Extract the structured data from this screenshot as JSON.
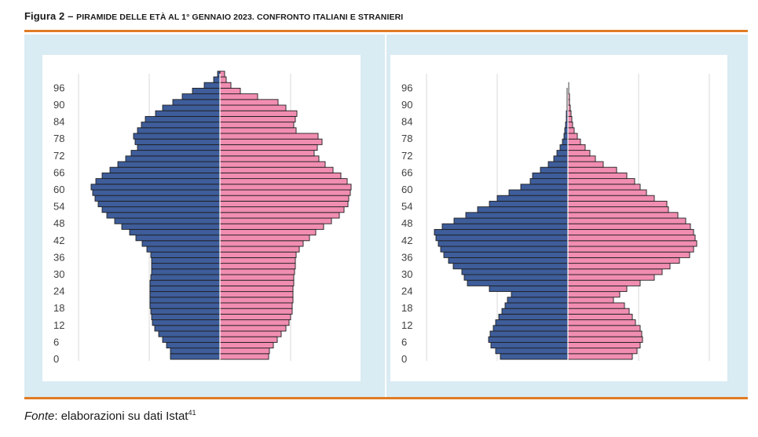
{
  "figure": {
    "label": "Figura 2",
    "dash": " – ",
    "title": "Piramide delle età al 1° gennaio 2023. Confronto italiani e stranieri"
  },
  "source": {
    "label": "Fonte",
    "text": ": elaborazioni su dati Istat",
    "note_ref": "41"
  },
  "colors": {
    "male": "#3e5d9a",
    "female": "#f18db1",
    "frame": "#d9ebf3",
    "rule": "#e07b24"
  },
  "chart_data": [
    {
      "type": "bar",
      "orientation": "horizontal",
      "population": "italiani",
      "y_ticks": [
        "0",
        "6",
        "12",
        "18",
        "24",
        "30",
        "36",
        "42",
        "48",
        "54",
        "60",
        "66",
        "72",
        "78",
        "84",
        "90",
        "96"
      ],
      "age_bins": [
        "0",
        "2",
        "4",
        "6",
        "8",
        "10",
        "12",
        "14",
        "16",
        "18",
        "20",
        "22",
        "24",
        "26",
        "28",
        "30",
        "32",
        "34",
        "36",
        "38",
        "40",
        "42",
        "44",
        "46",
        "48",
        "50",
        "52",
        "54",
        "56",
        "58",
        "60",
        "62",
        "64",
        "66",
        "68",
        "70",
        "72",
        "74",
        "76",
        "78",
        "80",
        "82",
        "84",
        "86",
        "88",
        "90",
        "92",
        "94",
        "96",
        "98",
        "100"
      ],
      "series": [
        {
          "values": [
            63,
            63,
            68,
            73,
            78,
            83,
            86,
            87,
            88,
            89,
            89,
            89,
            89,
            89,
            88,
            87,
            87,
            87,
            88,
            93,
            99,
            107,
            115,
            125,
            134,
            144,
            150,
            155,
            159,
            162,
            164,
            158,
            150,
            140,
            130,
            120,
            113,
            105,
            108,
            110,
            105,
            100,
            95,
            82,
            73,
            60,
            48,
            35,
            20,
            8,
            3
          ]
        },
        {
          "values": [
            62,
            63,
            68,
            73,
            78,
            84,
            88,
            90,
            92,
            92,
            93,
            93,
            93,
            94,
            94,
            95,
            96,
            96,
            97,
            101,
            106,
            114,
            122,
            132,
            142,
            152,
            158,
            163,
            164,
            166,
            167,
            162,
            154,
            144,
            134,
            126,
            120,
            124,
            130,
            125,
            97,
            94,
            96,
            98,
            84,
            74,
            48,
            26,
            14,
            8,
            6
          ]
        }
      ],
      "xlim": [
        -180,
        180
      ]
    },
    {
      "type": "bar",
      "orientation": "horizontal",
      "population": "stranieri",
      "y_ticks": [
        "0",
        "6",
        "12",
        "18",
        "24",
        "30",
        "36",
        "42",
        "48",
        "54",
        "60",
        "66",
        "72",
        "78",
        "84",
        "90",
        "96"
      ],
      "age_bins": [
        "0",
        "2",
        "4",
        "6",
        "8",
        "10",
        "12",
        "14",
        "16",
        "18",
        "20",
        "22",
        "24",
        "26",
        "28",
        "30",
        "32",
        "34",
        "36",
        "38",
        "40",
        "42",
        "44",
        "46",
        "48",
        "50",
        "52",
        "54",
        "56",
        "58",
        "60",
        "62",
        "64",
        "66",
        "68",
        "70",
        "72",
        "74",
        "76",
        "78",
        "80",
        "82",
        "84",
        "86",
        "88",
        "90",
        "92",
        "94",
        "96"
      ],
      "series": [
        {
          "values": [
            86,
            92,
            98,
            101,
            99,
            95,
            92,
            88,
            84,
            80,
            77,
            72,
            100,
            128,
            132,
            135,
            146,
            152,
            158,
            162,
            165,
            168,
            170,
            160,
            145,
            130,
            115,
            100,
            90,
            75,
            60,
            48,
            45,
            35,
            25,
            18,
            14,
            10,
            7,
            5,
            4,
            3,
            2,
            2,
            1,
            1,
            1,
            1,
            0
          ]
        },
        {
          "values": [
            82,
            88,
            92,
            95,
            94,
            92,
            86,
            82,
            78,
            72,
            58,
            66,
            75,
            92,
            110,
            120,
            130,
            142,
            155,
            160,
            164,
            162,
            160,
            156,
            150,
            140,
            128,
            126,
            110,
            100,
            92,
            85,
            75,
            62,
            45,
            35,
            28,
            22,
            16,
            12,
            8,
            6,
            5,
            4,
            3,
            2,
            2,
            1,
            1
          ]
        }
      ],
      "xlim": [
        -180,
        180
      ]
    }
  ]
}
